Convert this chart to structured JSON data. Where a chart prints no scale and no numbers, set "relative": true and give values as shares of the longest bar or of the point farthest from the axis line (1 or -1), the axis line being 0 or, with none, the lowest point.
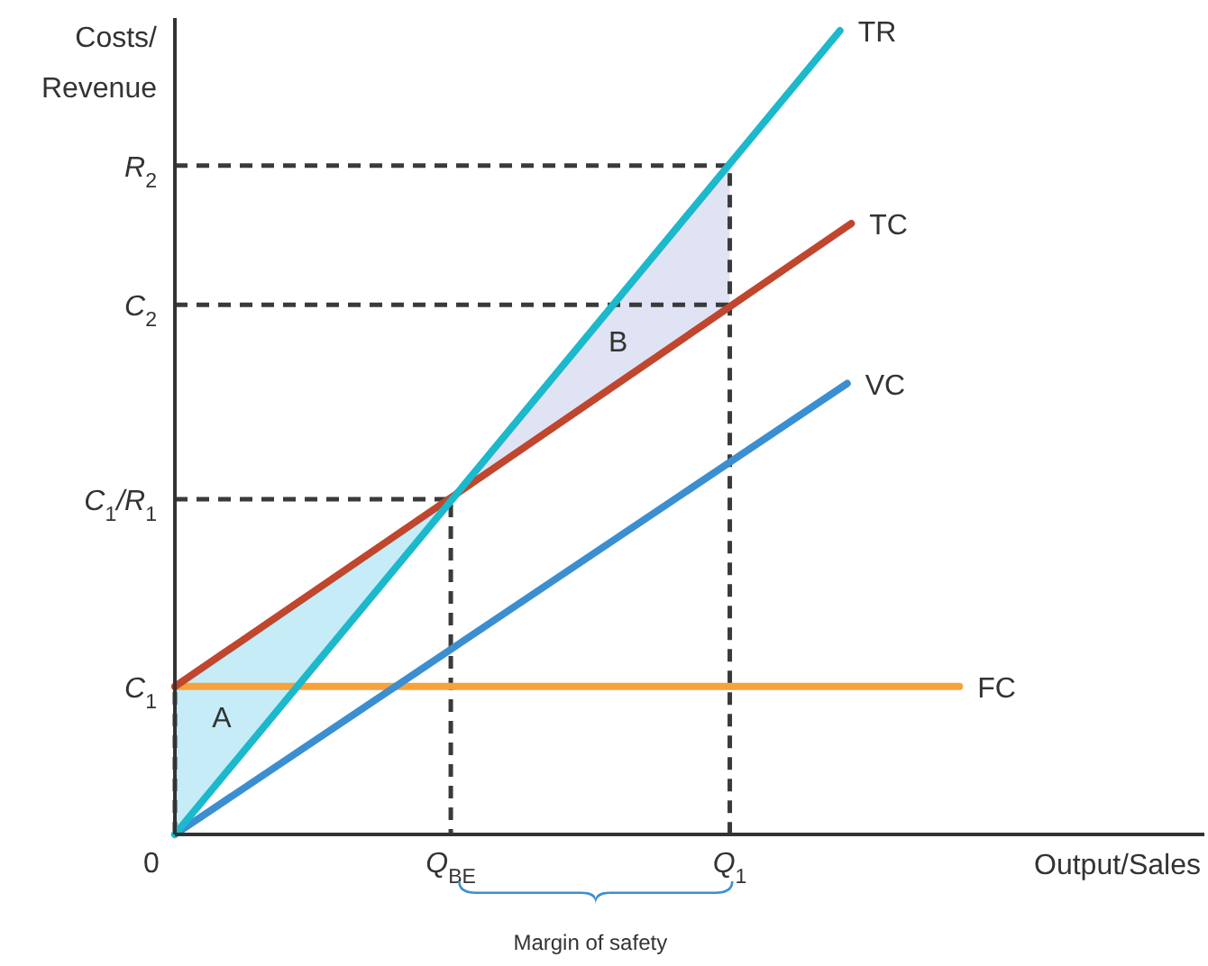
{
  "chart_data": {
    "type": "line",
    "relative": true,
    "xlabel": "Output/Sales",
    "ylabel": "Costs/ Revenue",
    "legend": false,
    "xlim": [
      0,
      1
    ],
    "xticks": [
      {
        "value": 0,
        "label": "0"
      },
      {
        "value": 0.268,
        "label": "Q$_{BE}$"
      },
      {
        "value": 0.539,
        "label": "Q$_{1}$"
      }
    ],
    "series": [
      {
        "name": "C$_{1}$/R$_{1}$",
        "line_style": "dashed",
        "color": "#3a3a3a",
        "x": [
          0,
          0.268,
          0.268
        ],
        "values": [
          0.417,
          0.417,
          0
        ]
      },
      {
        "name": "R$_{2}$",
        "line_style": "dashed",
        "color": "#3a3a3a",
        "x": [
          0,
          0.539,
          0.539
        ],
        "values": [
          0.832,
          0.832,
          0
        ]
      },
      {
        "name": "C$_{2}$",
        "line_style": "dashed",
        "color": "#3a3a3a",
        "x": [
          0,
          0.539
        ],
        "values": [
          0.659,
          0.659
        ]
      },
      {
        "name": "C$_{1}$",
        "line_style": "dashed",
        "color": "#3a3a3a",
        "x": [
          0,
          0
        ],
        "values": [
          0,
          0.184
        ]
      },
      {
        "name": "FC",
        "color": "#f7a23b",
        "x": [
          0,
          0.762
        ],
        "values": [
          0.184,
          0.184
        ]
      },
      {
        "name": "VC",
        "color": "#3b8fd1",
        "x": [
          0,
          0.653
        ],
        "values": [
          0,
          0.561
        ]
      },
      {
        "name": "TC",
        "color": "#c0462e",
        "x": [
          0,
          0.657
        ],
        "values": [
          0.184,
          0.76
        ]
      },
      {
        "name": "TR",
        "color": "#1cb8cc",
        "x": [
          0,
          0.646
        ],
        "values": [
          0,
          1
        ]
      }
    ],
    "annotations": [
      "A",
      "B",
      "Margin of safety"
    ]
  }
}
